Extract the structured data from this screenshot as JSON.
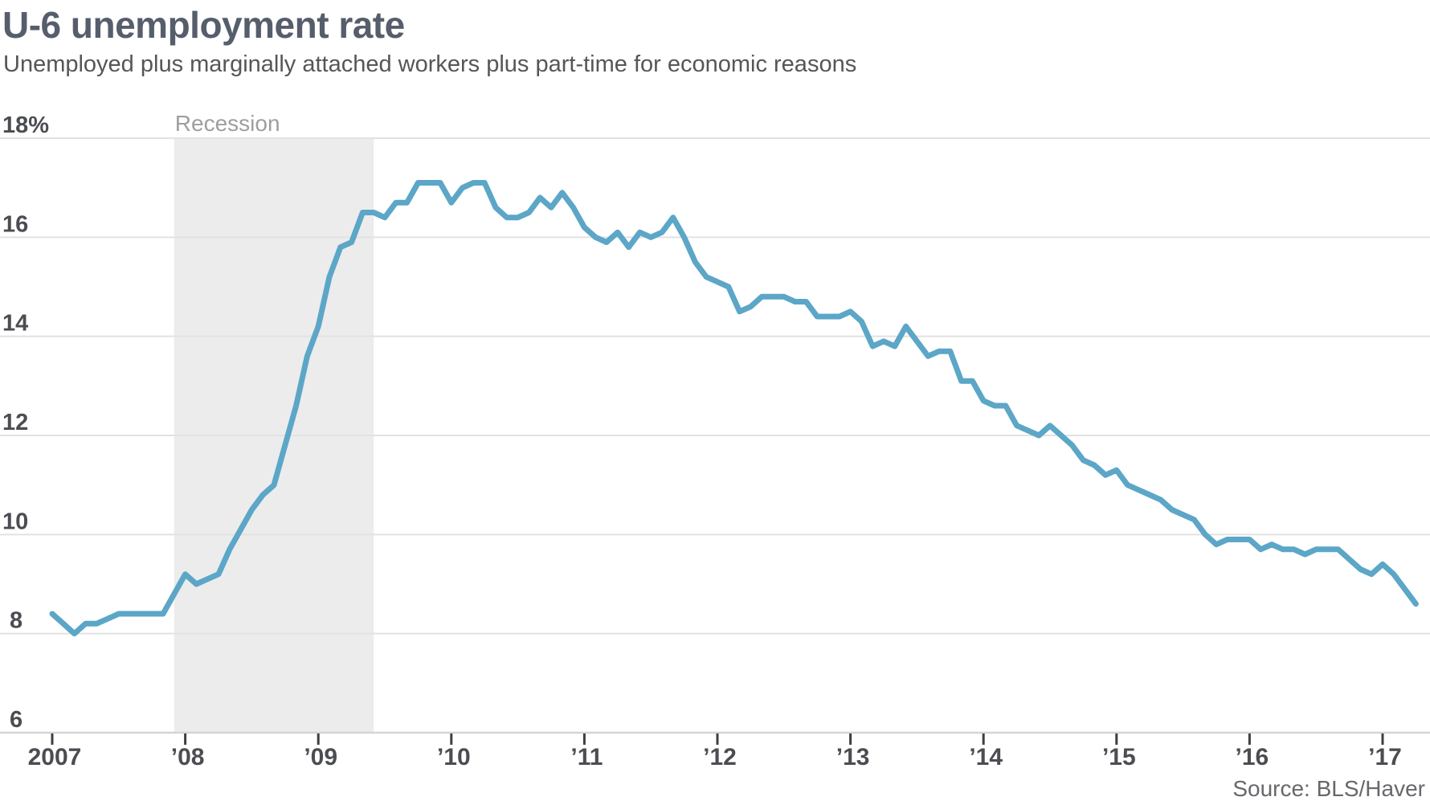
{
  "header": {
    "title": "U-6 unemployment rate",
    "subtitle": "Unemployed plus marginally attached workers plus part-time for economic reasons"
  },
  "footer": {
    "source": "Source: BLS/Haver"
  },
  "chart_data": {
    "type": "line",
    "title": "U-6 unemployment rate",
    "subtitle": "Unemployed plus marginally attached workers plus part-time for economic reasons",
    "source": "Source: BLS/Haver",
    "ylabel": "percent",
    "ylim": [
      6,
      18
    ],
    "grid": true,
    "legend": "none",
    "series": [
      {
        "name": "U-6 unemployment rate (%)",
        "start": "2007-01",
        "end": "2017-04",
        "frequency": "monthly",
        "values": [
          8.4,
          8.2,
          8.0,
          8.2,
          8.2,
          8.3,
          8.4,
          8.4,
          8.4,
          8.4,
          8.4,
          8.8,
          9.2,
          9.0,
          9.1,
          9.2,
          9.7,
          10.1,
          10.5,
          10.8,
          11.0,
          11.8,
          12.6,
          13.6,
          14.2,
          15.2,
          15.8,
          15.9,
          16.5,
          16.5,
          16.4,
          16.7,
          16.7,
          17.1,
          17.1,
          17.1,
          16.7,
          17.0,
          17.1,
          17.1,
          16.6,
          16.4,
          16.4,
          16.5,
          16.8,
          16.6,
          16.9,
          16.6,
          16.2,
          16.0,
          15.9,
          16.1,
          15.8,
          16.1,
          16.0,
          16.1,
          16.4,
          16.0,
          15.5,
          15.2,
          15.1,
          15.0,
          14.5,
          14.6,
          14.8,
          14.8,
          14.8,
          14.7,
          14.7,
          14.4,
          14.4,
          14.4,
          14.5,
          14.3,
          13.8,
          13.9,
          13.8,
          14.2,
          13.9,
          13.6,
          13.7,
          13.7,
          13.1,
          13.1,
          12.7,
          12.6,
          12.6,
          12.2,
          12.1,
          12.0,
          12.2,
          12.0,
          11.8,
          11.5,
          11.4,
          11.2,
          11.3,
          11.0,
          10.9,
          10.8,
          10.7,
          10.5,
          10.4,
          10.3,
          10.0,
          9.8,
          9.9,
          9.9,
          9.9,
          9.7,
          9.8,
          9.7,
          9.7,
          9.6,
          9.7,
          9.7,
          9.7,
          9.5,
          9.3,
          9.2,
          9.4,
          9.2,
          8.9,
          8.6
        ]
      }
    ],
    "yticks": [
      {
        "value": 18,
        "label": "18%"
      },
      {
        "value": 16,
        "label": "16"
      },
      {
        "value": 14,
        "label": "14"
      },
      {
        "value": 12,
        "label": "12"
      },
      {
        "value": 10,
        "label": "10"
      },
      {
        "value": 8,
        "label": "8"
      },
      {
        "value": 6,
        "label": "6"
      }
    ],
    "xticks": [
      {
        "month_index": 0,
        "label": "2007"
      },
      {
        "month_index": 12,
        "label": "’08"
      },
      {
        "month_index": 24,
        "label": "’09"
      },
      {
        "month_index": 36,
        "label": "’10"
      },
      {
        "month_index": 48,
        "label": "’11"
      },
      {
        "month_index": 60,
        "label": "’12"
      },
      {
        "month_index": 72,
        "label": "’13"
      },
      {
        "month_index": 84,
        "label": "’14"
      },
      {
        "month_index": 96,
        "label": "’15"
      },
      {
        "month_index": 108,
        "label": "’16"
      },
      {
        "month_index": 120,
        "label": "’17"
      }
    ],
    "recession": {
      "label": "Recession",
      "start": "2007-12",
      "end": "2009-06",
      "start_month_index": 11,
      "end_month_index": 29
    },
    "colors": {
      "line": "#5CA6C7",
      "recession_band": "#ECECEC",
      "gridline": "#E2E2E2",
      "axis_line": "#D4D4D4",
      "tick_mark": "#3F3F3F",
      "tick_label": "#4B4D52",
      "title": "#565E6C",
      "subtitle": "#55565A",
      "recession_label": "#9E9E9E",
      "source": "#66686B"
    }
  }
}
